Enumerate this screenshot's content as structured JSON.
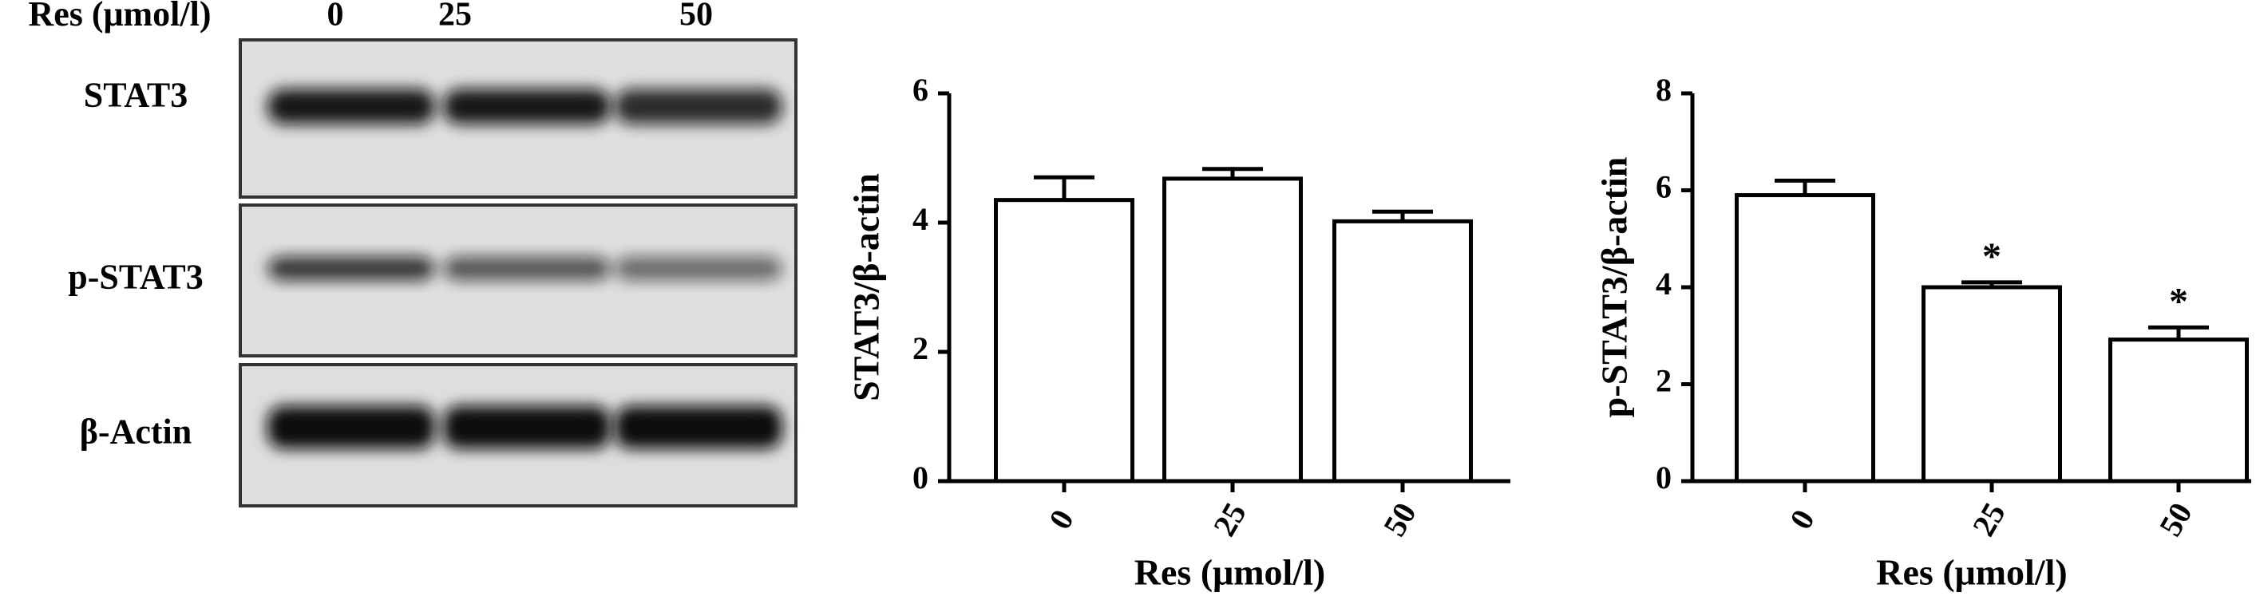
{
  "blot": {
    "header": "Res (μmol/l)",
    "lanes": [
      "0",
      "25",
      "50"
    ],
    "rows": [
      "STAT3",
      "p-STAT3",
      "β-Actin"
    ]
  },
  "chart_data": [
    {
      "type": "bar",
      "ylabel": "STAT3/β-actin",
      "xlabel": "Res (μmol/l)",
      "categories": [
        "0",
        "25",
        "50"
      ],
      "values": [
        4.35,
        4.68,
        4.02
      ],
      "errors": [
        0.35,
        0.15,
        0.15
      ],
      "ylim": [
        0,
        6
      ],
      "yticks": [
        0,
        2,
        4,
        6
      ],
      "color": "#ffffff"
    },
    {
      "type": "bar",
      "ylabel": "p-STAT3/β-actin",
      "xlabel": "Res (μmol/l)",
      "categories": [
        "0",
        "25",
        "50"
      ],
      "values": [
        5.9,
        4.0,
        2.92
      ],
      "errors": [
        0.3,
        0.1,
        0.25
      ],
      "significance": [
        null,
        "*",
        "*"
      ],
      "ylim": [
        0,
        8
      ],
      "yticks": [
        0,
        2,
        4,
        6,
        8
      ],
      "color": "#ffffff"
    }
  ]
}
